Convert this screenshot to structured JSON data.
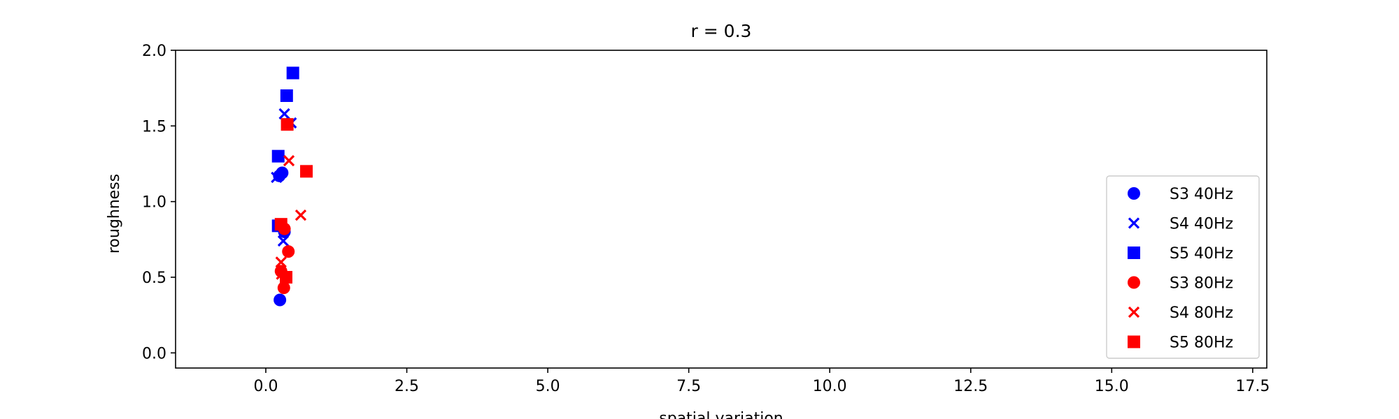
{
  "chart_data": {
    "type": "scatter",
    "title": "r = 0.3",
    "xlabel": "spatial variation",
    "ylabel": "roughness",
    "xlim": [
      -1.6,
      17.75
    ],
    "ylim": [
      -0.1,
      2.0
    ],
    "xticks": [
      0.0,
      2.5,
      5.0,
      7.5,
      10.0,
      12.5,
      15.0,
      17.5
    ],
    "xtick_labels": [
      "0.0",
      "2.5",
      "5.0",
      "7.5",
      "10.0",
      "12.5",
      "15.0",
      "17.5"
    ],
    "yticks": [
      0.0,
      0.5,
      1.0,
      1.5,
      2.0
    ],
    "ytick_labels": [
      "0.0",
      "0.5",
      "1.0",
      "1.5",
      "2.0"
    ],
    "grid": false,
    "legend": "center-right",
    "series": [
      {
        "name": "S3 40Hz",
        "marker": "circle",
        "color": "#0000ff",
        "points": [
          [
            0.24,
            1.17
          ],
          [
            0.29,
            1.19
          ],
          [
            0.33,
            0.8
          ],
          [
            0.25,
            0.35
          ]
        ]
      },
      {
        "name": "S4 40Hz",
        "marker": "x",
        "color": "#0000ff",
        "points": [
          [
            0.33,
            1.58
          ],
          [
            0.45,
            1.52
          ],
          [
            0.19,
            1.16
          ],
          [
            0.31,
            0.74
          ]
        ]
      },
      {
        "name": "S5 40Hz",
        "marker": "square",
        "color": "#0000ff",
        "points": [
          [
            0.48,
            1.85
          ],
          [
            0.37,
            1.7
          ],
          [
            0.22,
            1.3
          ],
          [
            0.22,
            0.84
          ]
        ]
      },
      {
        "name": "S3 80Hz",
        "marker": "circle",
        "color": "#ff0000",
        "points": [
          [
            0.4,
            0.67
          ],
          [
            0.33,
            0.82
          ],
          [
            0.27,
            0.54
          ],
          [
            0.32,
            0.43
          ]
        ]
      },
      {
        "name": "S4 80Hz",
        "marker": "x",
        "color": "#ff0000",
        "points": [
          [
            0.41,
            1.27
          ],
          [
            0.62,
            0.91
          ],
          [
            0.27,
            0.6
          ],
          [
            0.28,
            0.52
          ]
        ]
      },
      {
        "name": "S5 80Hz",
        "marker": "square",
        "color": "#ff0000",
        "points": [
          [
            0.38,
            1.51
          ],
          [
            0.72,
            1.2
          ],
          [
            0.27,
            0.85
          ],
          [
            0.36,
            0.5
          ]
        ]
      }
    ]
  }
}
